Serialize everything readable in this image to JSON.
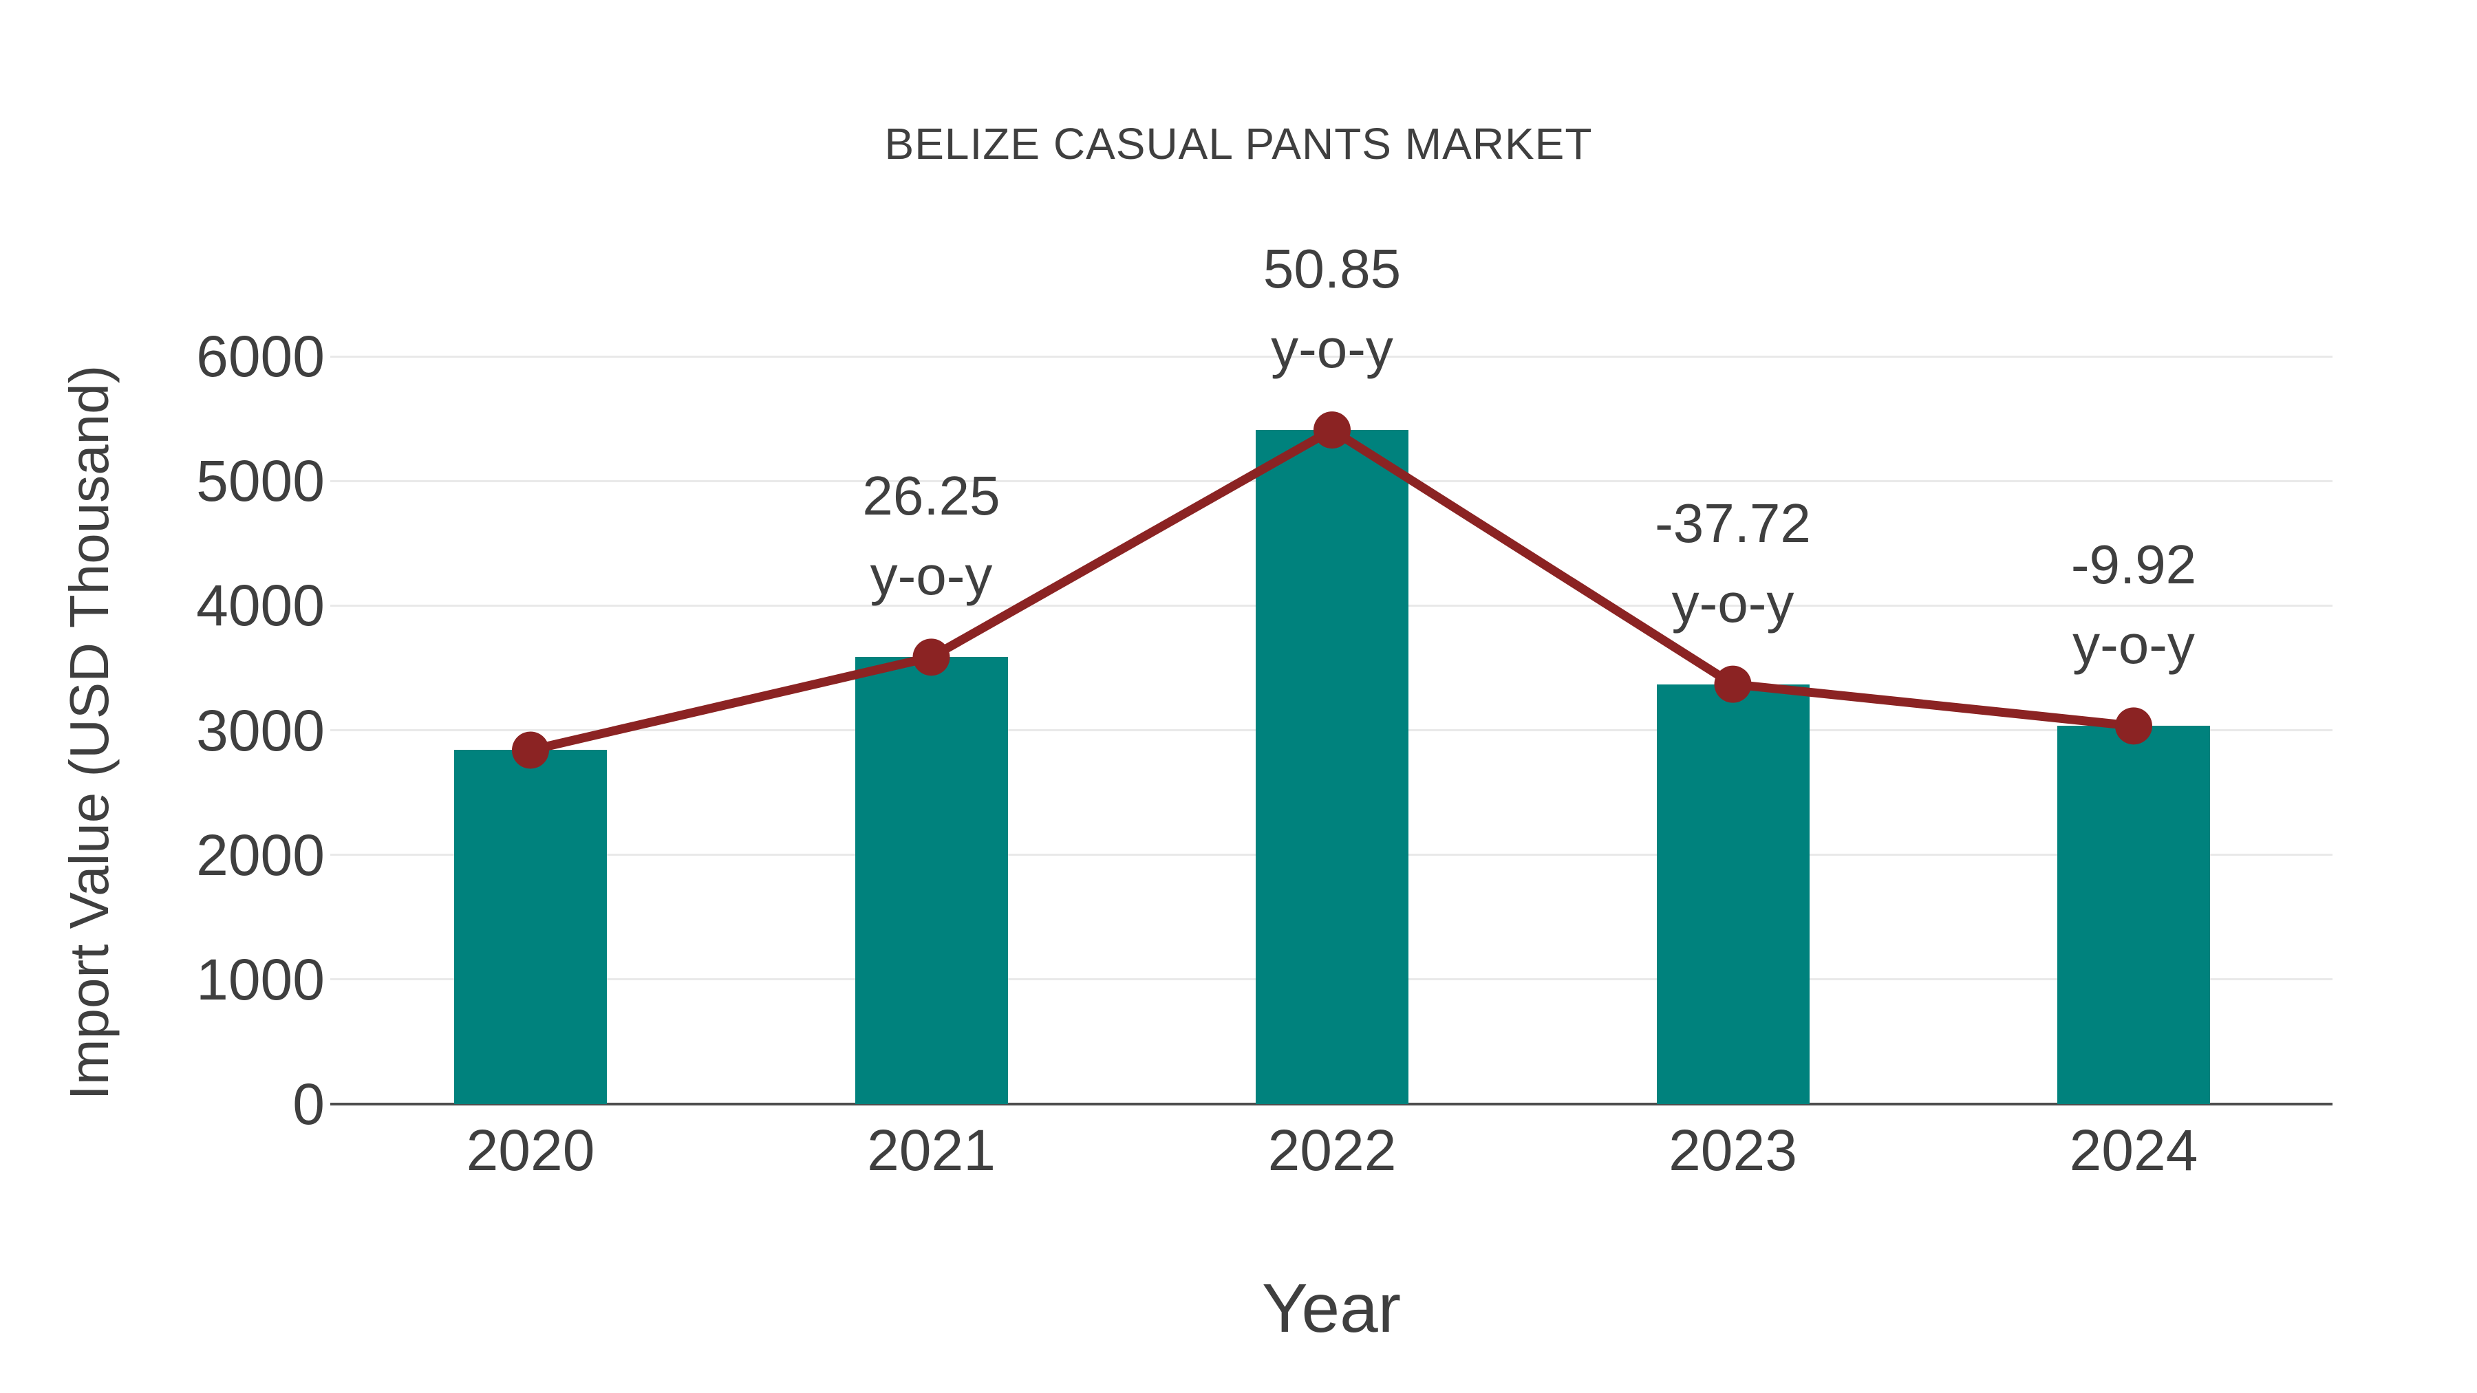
{
  "chart_data": {
    "type": "bar+line",
    "title": "BELIZE CASUAL PANTS MARKET",
    "xlabel": "Year",
    "ylabel": "Import Value (USD Thousand)",
    "categories": [
      "2020",
      "2021",
      "2022",
      "2023",
      "2024"
    ],
    "bar_series": {
      "name": "Import Value",
      "values": [
        2840,
        3586,
        5409,
        3369,
        3034
      ],
      "color": "#00827D"
    },
    "line_series": {
      "name": "y-o-y change line",
      "values": [
        2840,
        3586,
        5409,
        3369,
        3034
      ],
      "color": "#8B2323",
      "marker": "circle"
    },
    "annotations": [
      {
        "category": "2021",
        "value_label": "26.25",
        "suffix": "y-o-y"
      },
      {
        "category": "2022",
        "value_label": "50.85",
        "suffix": "y-o-y"
      },
      {
        "category": "2023",
        "value_label": "-37.72",
        "suffix": "y-o-y"
      },
      {
        "category": "2024",
        "value_label": "-9.92",
        "suffix": "y-o-y"
      }
    ],
    "ylim": [
      0,
      6000
    ],
    "yticks": [
      0,
      1000,
      2000,
      3000,
      4000,
      5000,
      6000
    ],
    "grid": "horizontal",
    "legend_position": "none",
    "colors": {
      "text": "#3F3F3F",
      "gridline": "#E9E9E9",
      "axis": "#4D4D4D",
      "background": "#FFFFFF"
    }
  }
}
